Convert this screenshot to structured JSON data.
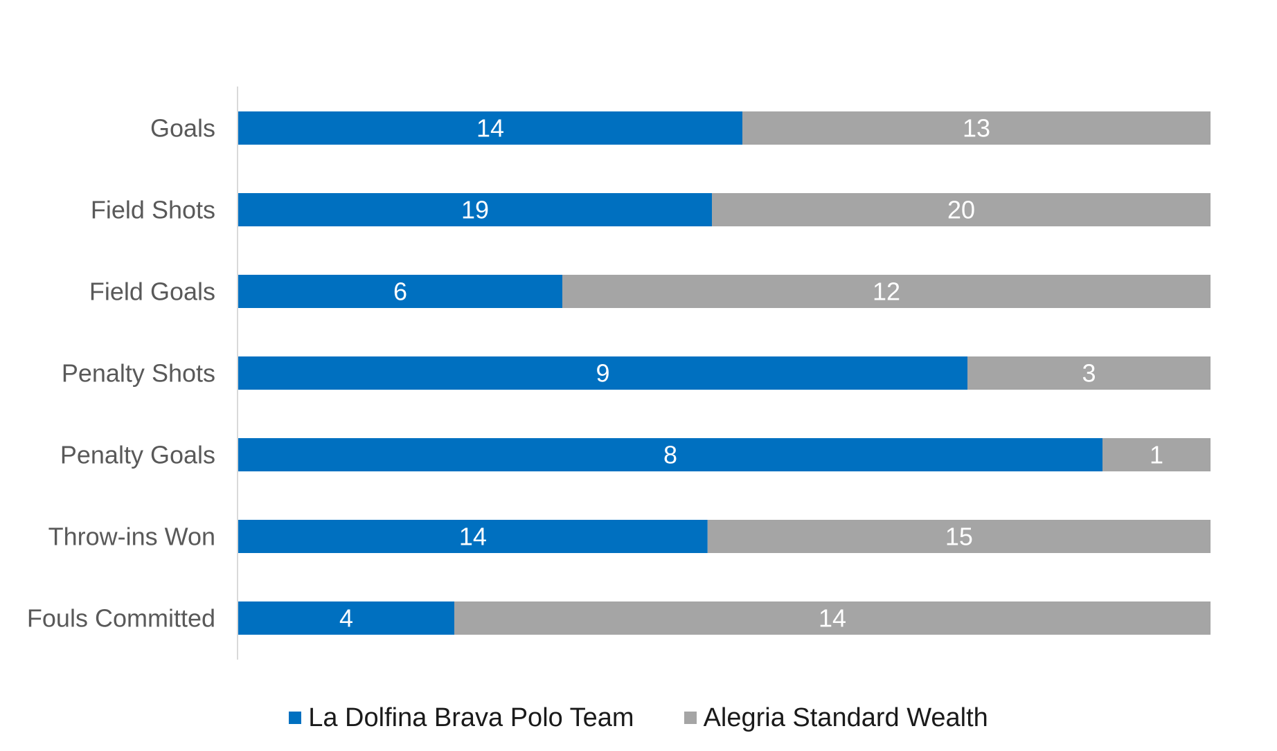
{
  "chart_data": {
    "type": "bar",
    "orientation": "horizontal",
    "stacked": "percent",
    "categories": [
      "Goals",
      "Field Shots",
      "Field Goals",
      "Penalty Shots",
      "Penalty Goals",
      "Throw-ins Won",
      "Fouls Committed"
    ],
    "series": [
      {
        "name": "La Dolfina Brava Polo Team",
        "color": "#0070C0",
        "values": [
          14,
          19,
          6,
          9,
          8,
          14,
          4
        ]
      },
      {
        "name": "Alegria Standard Wealth",
        "color": "#A5A5A5",
        "values": [
          13,
          20,
          12,
          3,
          1,
          15,
          14
        ]
      }
    ],
    "data_labels": true,
    "grid": false,
    "legend": "bottom"
  }
}
